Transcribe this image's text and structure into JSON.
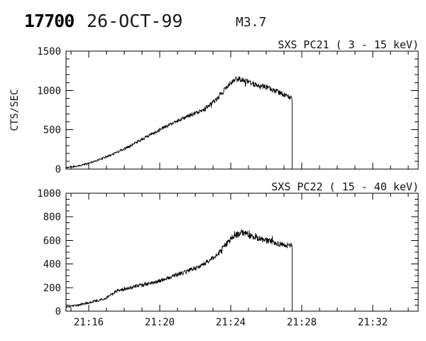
{
  "header": {
    "event_id": "17700",
    "date": "26-OCT-99",
    "flare_class": "M3.7"
  },
  "chart_data": {
    "type": "line",
    "title": "17700 26-OCT-99 M3.7",
    "line_color": "#000000",
    "background": "#ffffff",
    "grid": false,
    "legend": false,
    "x_axis": {
      "kind": "time",
      "base_hour": 21,
      "start_minutes": 14.72,
      "end_minutes": 34.56,
      "major_ticks": [
        {
          "minute": 16,
          "label": "21:16"
        },
        {
          "minute": 20,
          "label": "21:20"
        },
        {
          "minute": 24,
          "label": "21:24"
        },
        {
          "minute": 28,
          "label": "21:28"
        },
        {
          "minute": 32,
          "label": "21:32"
        }
      ],
      "minor_tick_every_minutes": 1
    },
    "data_end_minutes": 27.46,
    "drop_to_zero_at_end": true,
    "panels": [
      {
        "title": "SXS PC21  (  3 - 15 keV)",
        "ylabel": "CTS/SEC",
        "ylim": [
          0,
          1500
        ],
        "ytick_major": 500,
        "ytick_minor": 100,
        "ytick_labels": [
          "0",
          "500",
          "1000",
          "1500"
        ],
        "anchors_min_value": [
          [
            14.72,
            18
          ],
          [
            15.5,
            45
          ],
          [
            16,
            75
          ],
          [
            16.5,
            115
          ],
          [
            17,
            155
          ],
          [
            17.5,
            205
          ],
          [
            18,
            258
          ],
          [
            18.5,
            315
          ],
          [
            19,
            378
          ],
          [
            19.5,
            440
          ],
          [
            20,
            502
          ],
          [
            20.5,
            560
          ],
          [
            21,
            618
          ],
          [
            21.5,
            662
          ],
          [
            22,
            712
          ],
          [
            22.5,
            762
          ],
          [
            23,
            852
          ],
          [
            23.3,
            915
          ],
          [
            23.6,
            1000
          ],
          [
            23.9,
            1070
          ],
          [
            24.2,
            1135
          ],
          [
            24.45,
            1150
          ],
          [
            24.7,
            1128
          ],
          [
            25,
            1100
          ],
          [
            25.5,
            1072
          ],
          [
            26,
            1040
          ],
          [
            26.5,
            995
          ],
          [
            27,
            948
          ],
          [
            27.25,
            918
          ],
          [
            27.46,
            895
          ]
        ],
        "noise": {
          "base": 9,
          "per_value": 0.024,
          "seed": 11
        }
      },
      {
        "title": "SXS PC22  ( 15 - 40 keV)",
        "ylabel": "",
        "ylim": [
          0,
          1000
        ],
        "ytick_major": 200,
        "ytick_minor": 50,
        "ytick_labels": [
          "0",
          "200",
          "400",
          "600",
          "800",
          "1000"
        ],
        "anchors_min_value": [
          [
            14.72,
            35
          ],
          [
            15.5,
            55
          ],
          [
            16,
            72
          ],
          [
            16.5,
            90
          ],
          [
            17,
            112
          ],
          [
            17.3,
            145
          ],
          [
            17.6,
            175
          ],
          [
            18,
            185
          ],
          [
            18.5,
            205
          ],
          [
            19,
            222
          ],
          [
            19.5,
            238
          ],
          [
            20,
            258
          ],
          [
            20.5,
            282
          ],
          [
            21,
            310
          ],
          [
            21.5,
            335
          ],
          [
            22,
            362
          ],
          [
            22.5,
            400
          ],
          [
            23,
            448
          ],
          [
            23.3,
            490
          ],
          [
            23.6,
            545
          ],
          [
            23.9,
            600
          ],
          [
            24.2,
            640
          ],
          [
            24.6,
            662
          ],
          [
            25,
            648
          ],
          [
            25.5,
            622
          ],
          [
            26,
            600
          ],
          [
            26.5,
            582
          ],
          [
            27,
            565
          ],
          [
            27.46,
            548
          ]
        ],
        "noise": {
          "base": 7,
          "per_value": 0.033,
          "seed": 23
        }
      }
    ]
  }
}
